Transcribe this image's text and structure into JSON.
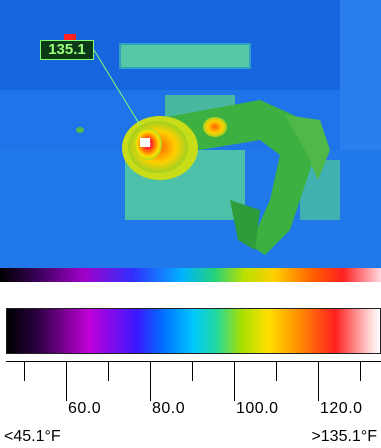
{
  "spot_reading": {
    "value": "135.1",
    "color": "#9cff7c"
  },
  "scale": {
    "ticks": [
      "60.0",
      "80.0",
      "100.0",
      "120.0"
    ],
    "min_label": "<45.1°F",
    "max_label": ">135.1°F"
  },
  "palette": {
    "background": "#1a6fe8",
    "hot": "#ff2020",
    "warm": "#ffe000",
    "mid": "#20d080",
    "cool": "#00b4ff"
  }
}
